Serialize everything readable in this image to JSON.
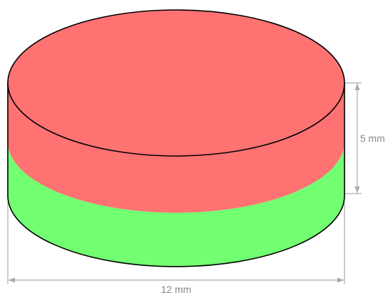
{
  "colors": {
    "top_half": "#ff7272",
    "bottom_half": "#72ff72",
    "outline": "#000000",
    "dimension": "#aaaaaa",
    "dimension_text": "#888888"
  },
  "dimensions": {
    "height_label": "5 mm",
    "diameter_label": "12 mm"
  }
}
